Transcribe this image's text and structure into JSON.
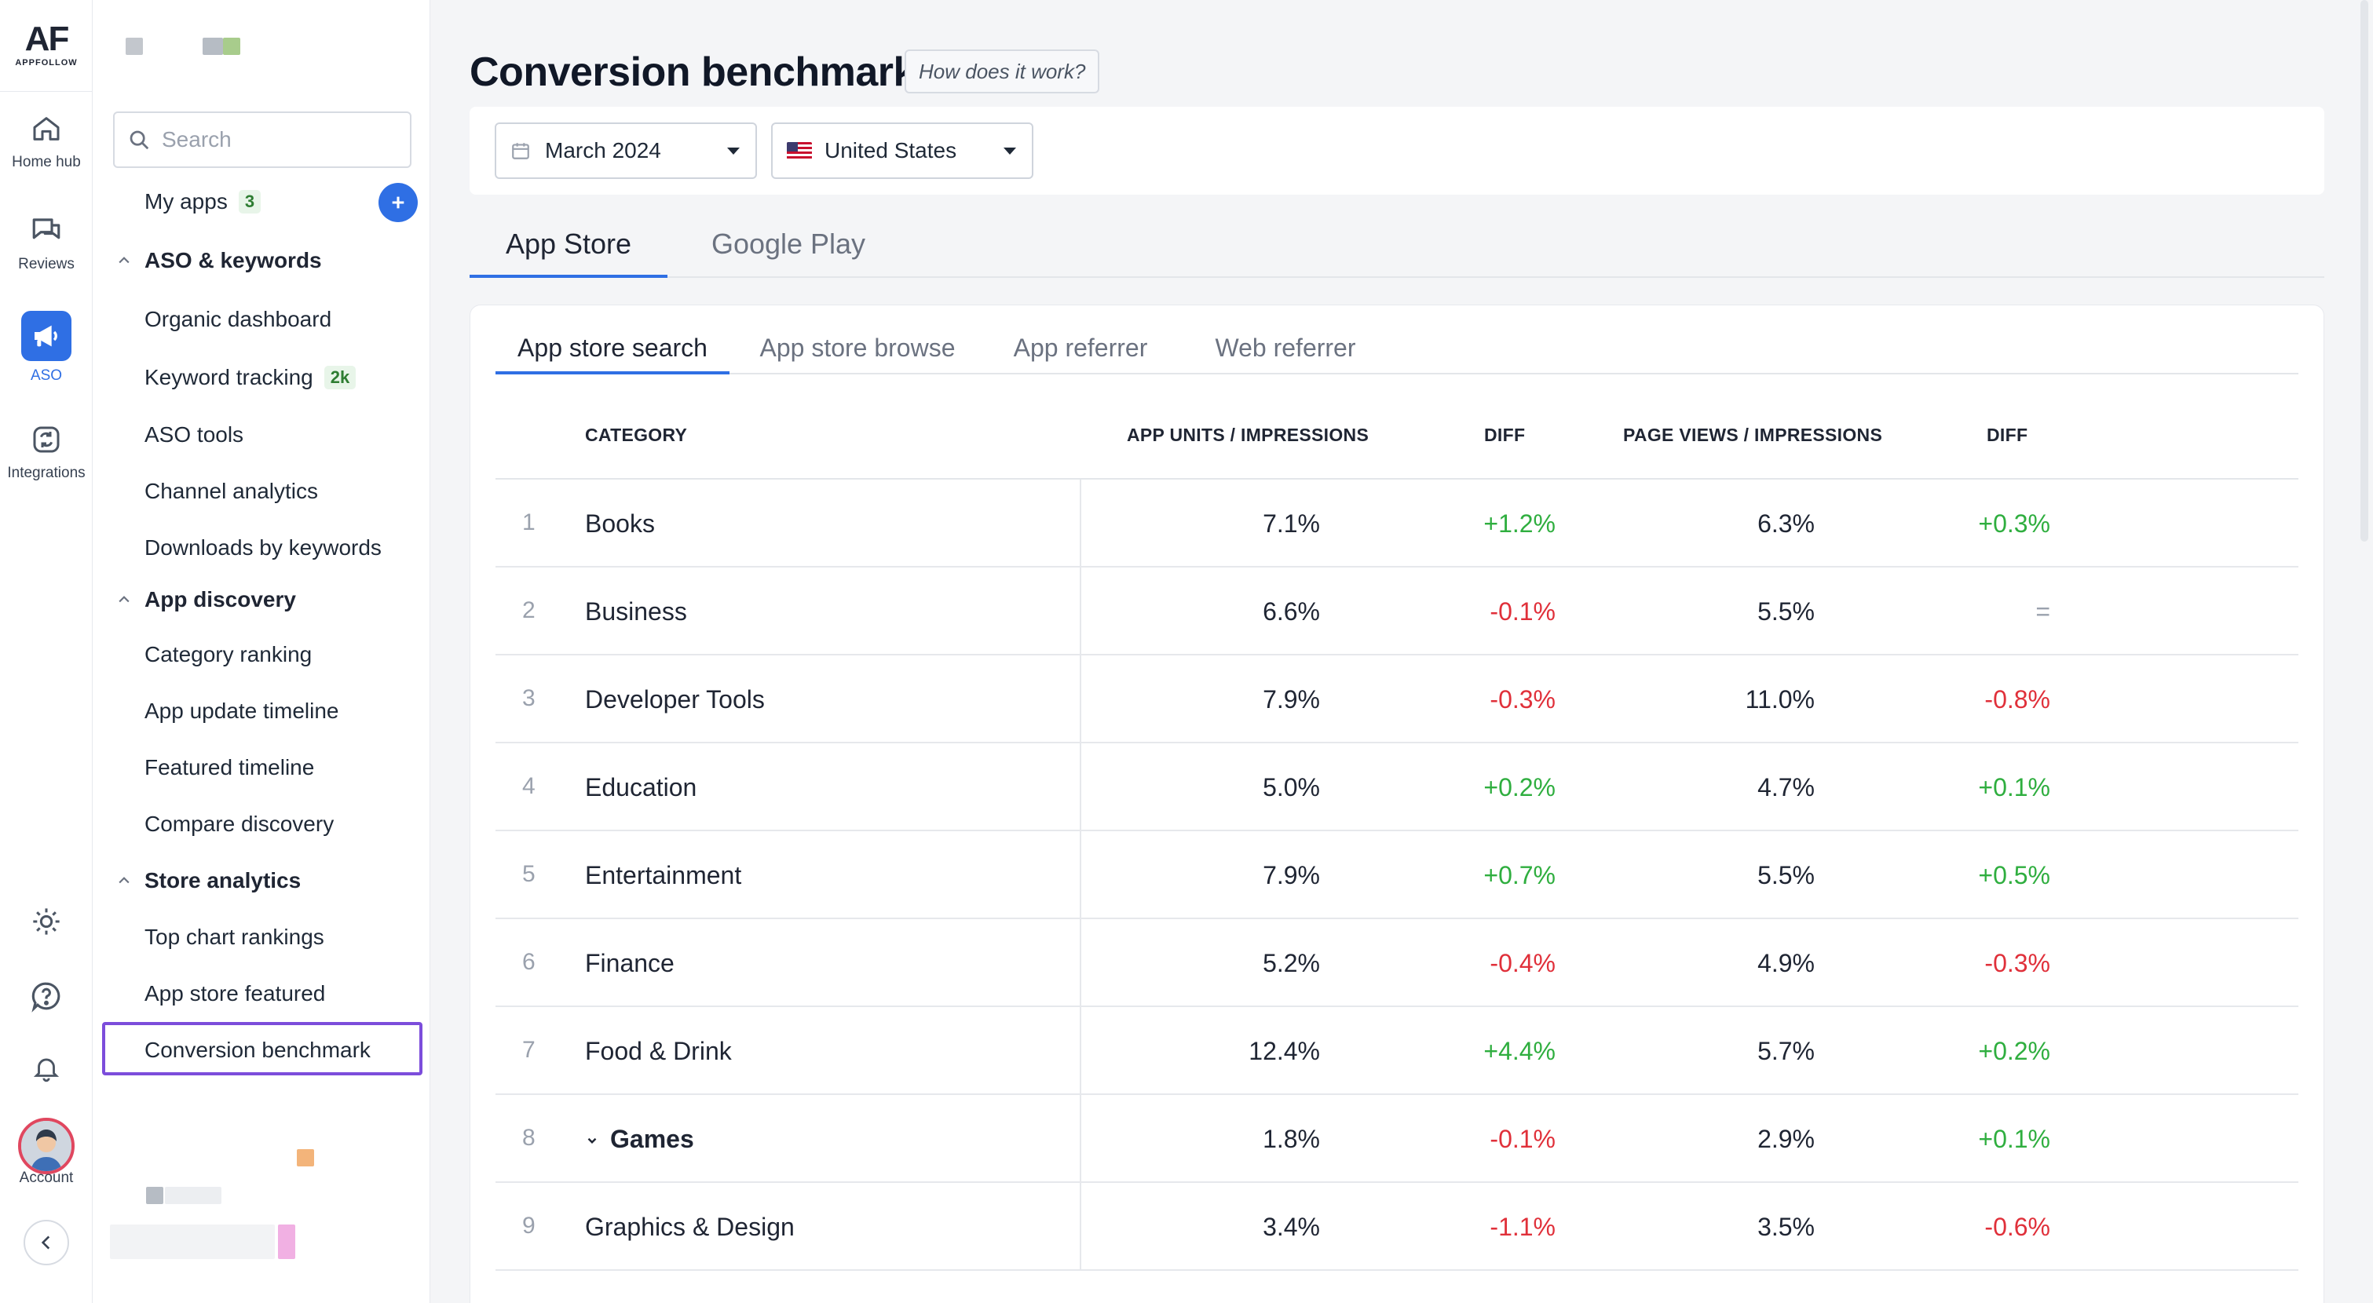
{
  "brand": {
    "logo_text": "AF",
    "logo_sub": "APPFOLLOW",
    "accent": "#2f6fe4"
  },
  "rail": {
    "items": [
      {
        "label": "Home hub",
        "icon": "home-icon"
      },
      {
        "label": "Reviews",
        "icon": "chat-icon"
      },
      {
        "label": "ASO",
        "icon": "megaphone-icon",
        "active": true
      },
      {
        "label": "Integrations",
        "icon": "integrations-icon"
      }
    ],
    "tools": [
      "sun-icon",
      "help-icon",
      "bell-icon"
    ],
    "account_label": "Account"
  },
  "subnav": {
    "search_placeholder": "Search",
    "my_apps": {
      "label": "My apps",
      "count": "3"
    },
    "groups": [
      {
        "title": "ASO & keywords",
        "items": [
          {
            "label": "Organic dashboard"
          },
          {
            "label": "Keyword tracking",
            "badge": "2k"
          },
          {
            "label": "ASO tools"
          },
          {
            "label": "Channel analytics"
          },
          {
            "label": "Downloads by keywords"
          }
        ]
      },
      {
        "title": "App discovery",
        "items": [
          {
            "label": "Category ranking"
          },
          {
            "label": "App update timeline"
          },
          {
            "label": "Featured timeline"
          },
          {
            "label": "Compare discovery"
          }
        ]
      },
      {
        "title": "Store analytics",
        "items": [
          {
            "label": "Top chart rankings"
          },
          {
            "label": "App store featured"
          },
          {
            "label": "Conversion benchmark",
            "active": true
          }
        ]
      }
    ]
  },
  "main": {
    "title": "Conversion benchmark",
    "how_link": "How does it work?",
    "filters": {
      "date": "March 2024",
      "country": "United States"
    },
    "store_tabs": [
      "App Store",
      "Google Play"
    ],
    "sub_tabs": [
      "App store search",
      "App store browse",
      "App referrer",
      "Web referrer"
    ],
    "table": {
      "headers": [
        "CATEGORY",
        "APP UNITS / IMPRESSIONS",
        "DIFF",
        "PAGE VIEWS / IMPRESSIONS",
        "DIFF"
      ],
      "rows": [
        {
          "idx": "1",
          "cat": "Books",
          "au": "7.1%",
          "d1": "+1.2%",
          "pv": "6.3%",
          "d2": "+0.3%"
        },
        {
          "idx": "2",
          "cat": "Business",
          "au": "6.6%",
          "d1": "-0.1%",
          "pv": "5.5%",
          "d2": "="
        },
        {
          "idx": "3",
          "cat": "Developer Tools",
          "au": "7.9%",
          "d1": "-0.3%",
          "pv": "11.0%",
          "d2": "-0.8%"
        },
        {
          "idx": "4",
          "cat": "Education",
          "au": "5.0%",
          "d1": "+0.2%",
          "pv": "4.7%",
          "d2": "+0.1%"
        },
        {
          "idx": "5",
          "cat": "Entertainment",
          "au": "7.9%",
          "d1": "+0.7%",
          "pv": "5.5%",
          "d2": "+0.5%"
        },
        {
          "idx": "6",
          "cat": "Finance",
          "au": "5.2%",
          "d1": "-0.4%",
          "pv": "4.9%",
          "d2": "-0.3%"
        },
        {
          "idx": "7",
          "cat": "Food & Drink",
          "au": "12.4%",
          "d1": "+4.4%",
          "pv": "5.7%",
          "d2": "+0.2%"
        },
        {
          "idx": "8",
          "cat": "Games",
          "au": "1.8%",
          "d1": "-0.1%",
          "pv": "2.9%",
          "d2": "+0.1%",
          "expandable": true
        },
        {
          "idx": "9",
          "cat": "Graphics & Design",
          "au": "3.4%",
          "d1": "-1.1%",
          "pv": "3.5%",
          "d2": "-0.6%"
        }
      ]
    }
  },
  "colors": {
    "positive": "#2fae3f",
    "negative": "#e0303a",
    "neutral": "#9aa1ad",
    "active_outline": "#7c4ddb"
  }
}
